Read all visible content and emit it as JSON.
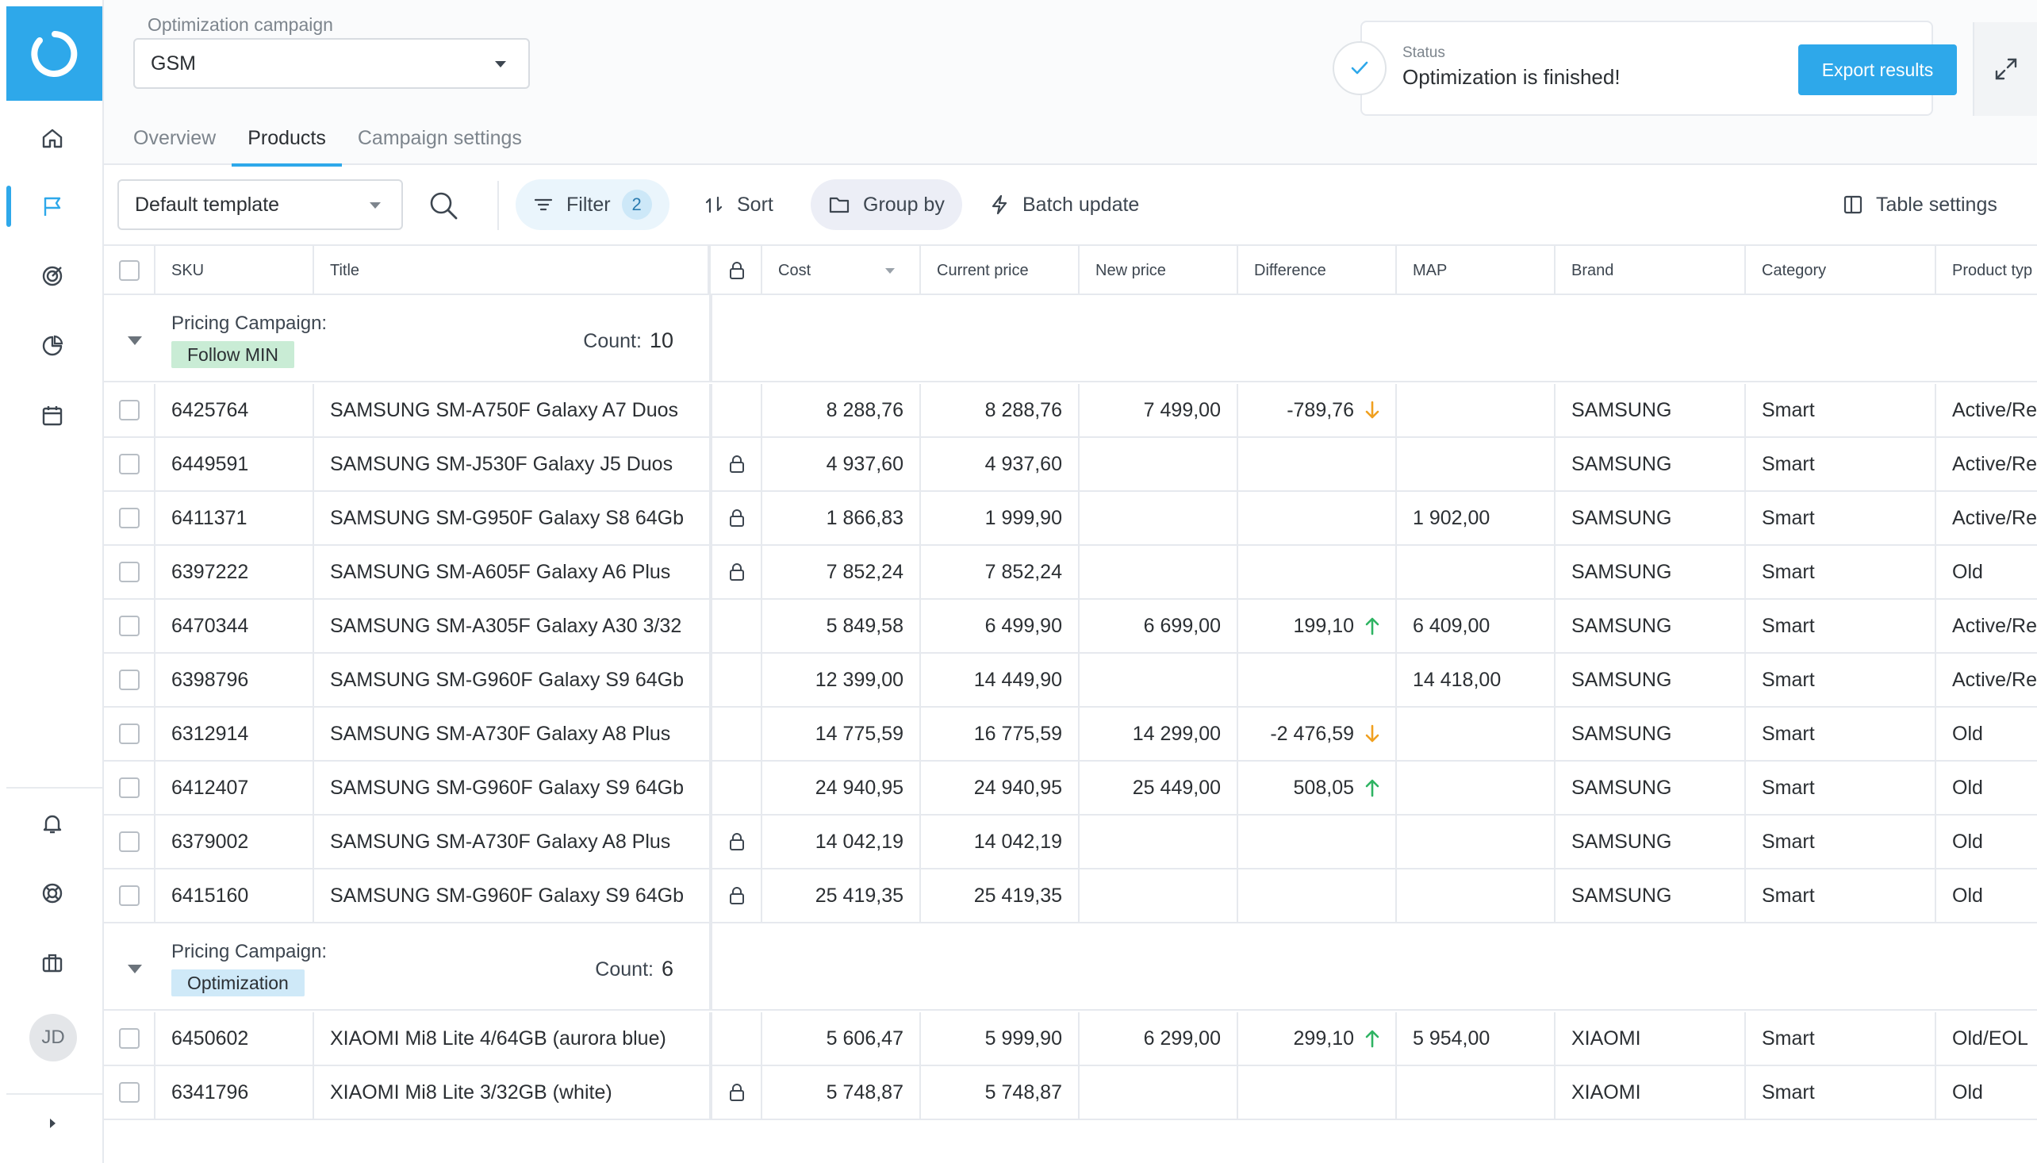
{
  "sidebar": {
    "user_initials": "JD"
  },
  "header": {
    "campaign_label": "Optimization campaign",
    "campaign_value": "GSM",
    "tabs": [
      {
        "label": "Overview"
      },
      {
        "label": "Products"
      },
      {
        "label": "Campaign settings"
      }
    ],
    "status_title": "Status",
    "status_text": "Optimization is finished!",
    "export_label": "Export results"
  },
  "toolbar": {
    "template_value": "Default template",
    "filter_label": "Filter",
    "filter_count": "2",
    "sort_label": "Sort",
    "group_by_label": "Group by",
    "batch_update_label": "Batch update",
    "table_settings_label": "Table settings"
  },
  "table": {
    "columns": {
      "sku": "SKU",
      "title": "Title",
      "cost": "Cost",
      "current_price": "Current price",
      "new_price": "New price",
      "difference": "Difference",
      "map": "MAP",
      "brand": "Brand",
      "category": "Category",
      "product_type": "Product typ"
    },
    "groups": [
      {
        "label": "Pricing Campaign:",
        "badge": "Follow MIN",
        "badge_color": "#c9ecd5",
        "count_label": "Count:",
        "count": "10",
        "rows": [
          {
            "sku": "6425764",
            "title": "SAMSUNG SM-A750F Galaxy A7 Duos",
            "locked": false,
            "cost": "8 288,76",
            "current_price": "8 288,76",
            "new_price": "7 499,00",
            "difference": "-789,76",
            "direction": "down",
            "map": "",
            "brand": "SAMSUNG",
            "category": "Smart",
            "product_type": "Active/Re"
          },
          {
            "sku": "6449591",
            "title": "SAMSUNG SM-J530F Galaxy J5 Duos",
            "locked": true,
            "cost": "4 937,60",
            "current_price": "4 937,60",
            "new_price": "",
            "difference": "",
            "direction": "",
            "map": "",
            "brand": "SAMSUNG",
            "category": "Smart",
            "product_type": "Active/Re"
          },
          {
            "sku": "6411371",
            "title": "SAMSUNG SM-G950F Galaxy S8 64Gb",
            "locked": true,
            "cost": "1 866,83",
            "current_price": "1 999,90",
            "new_price": "",
            "difference": "",
            "direction": "",
            "map": "1 902,00",
            "brand": "SAMSUNG",
            "category": "Smart",
            "product_type": "Active/Re"
          },
          {
            "sku": "6397222",
            "title": "SAMSUNG SM-A605F Galaxy A6 Plus",
            "locked": true,
            "cost": "7 852,24",
            "current_price": "7 852,24",
            "new_price": "",
            "difference": "",
            "direction": "",
            "map": "",
            "brand": "SAMSUNG",
            "category": "Smart",
            "product_type": "Old"
          },
          {
            "sku": "6470344",
            "title": "SAMSUNG SM-A305F Galaxy A30 3/32",
            "locked": false,
            "cost": "5 849,58",
            "current_price": "6 499,90",
            "new_price": "6 699,00",
            "difference": "199,10",
            "direction": "up",
            "map": "6 409,00",
            "brand": "SAMSUNG",
            "category": "Smart",
            "product_type": "Active/Re"
          },
          {
            "sku": "6398796",
            "title": "SAMSUNG SM-G960F Galaxy S9 64Gb",
            "locked": false,
            "cost": "12 399,00",
            "current_price": "14 449,90",
            "new_price": "",
            "difference": "",
            "direction": "",
            "map": "14 418,00",
            "brand": "SAMSUNG",
            "category": "Smart",
            "product_type": "Active/Re"
          },
          {
            "sku": "6312914",
            "title": "SAMSUNG SM-A730F Galaxy A8 Plus",
            "locked": false,
            "cost": "14 775,59",
            "current_price": "16 775,59",
            "new_price": "14 299,00",
            "difference": "-2 476,59",
            "direction": "down",
            "map": "",
            "brand": "SAMSUNG",
            "category": "Smart",
            "product_type": "Old"
          },
          {
            "sku": "6412407",
            "title": "SAMSUNG SM-G960F Galaxy S9 64Gb",
            "locked": false,
            "cost": "24 940,95",
            "current_price": "24 940,95",
            "new_price": "25 449,00",
            "difference": "508,05",
            "direction": "up",
            "map": "",
            "brand": "SAMSUNG",
            "category": "Smart",
            "product_type": "Old"
          },
          {
            "sku": "6379002",
            "title": "SAMSUNG SM-A730F Galaxy A8 Plus",
            "locked": true,
            "cost": "14 042,19",
            "current_price": "14 042,19",
            "new_price": "",
            "difference": "",
            "direction": "",
            "map": "",
            "brand": "SAMSUNG",
            "category": "Smart",
            "product_type": "Old"
          },
          {
            "sku": "6415160",
            "title": "SAMSUNG SM-G960F Galaxy S9 64Gb",
            "locked": true,
            "cost": "25 419,35",
            "current_price": "25 419,35",
            "new_price": "",
            "difference": "",
            "direction": "",
            "map": "",
            "brand": "SAMSUNG",
            "category": "Smart",
            "product_type": "Old"
          }
        ]
      },
      {
        "label": "Pricing Campaign:",
        "badge": "Optimization",
        "badge_color": "#cfe9f8",
        "count_label": "Count:",
        "count": "6",
        "rows": [
          {
            "sku": "6450602",
            "title": "XIAOMI Mi8 Lite 4/64GB (aurora blue)",
            "locked": false,
            "cost": "5 606,47",
            "current_price": "5 999,90",
            "new_price": "6 299,00",
            "difference": "299,10",
            "direction": "up",
            "map": "5 954,00",
            "brand": "XIAOMI",
            "category": "Smart",
            "product_type": "Old/EOL"
          },
          {
            "sku": "6341796",
            "title": "XIAOMI Mi8 Lite 3/32GB (white)",
            "locked": true,
            "cost": "5 748,87",
            "current_price": "5 748,87",
            "new_price": "",
            "difference": "",
            "direction": "",
            "map": "",
            "brand": "XIAOMI",
            "category": "Smart",
            "product_type": "Old"
          }
        ]
      }
    ]
  },
  "colors": {
    "accent": "#2ea8ea",
    "arrow_up": "#2fb463",
    "arrow_down": "#f0a020"
  }
}
